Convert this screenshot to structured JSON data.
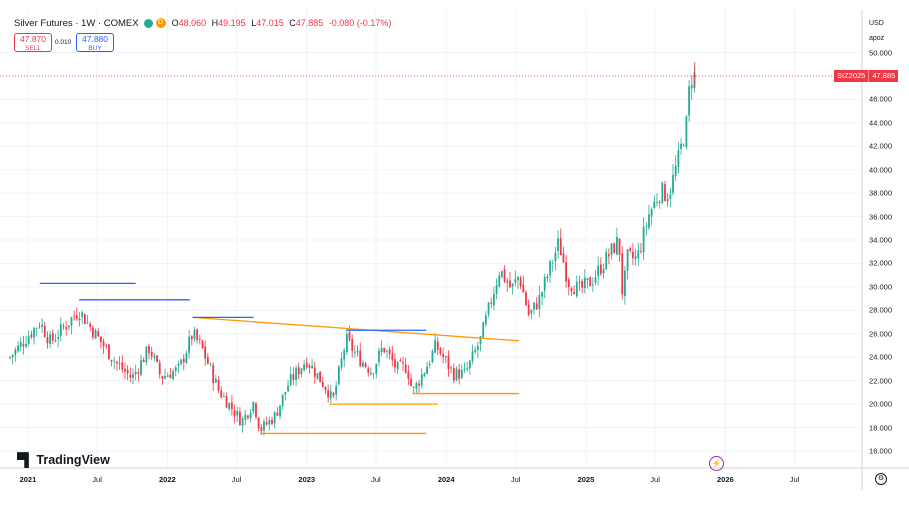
{
  "legend": {
    "title": "Silver Futures · 1W · COMEX",
    "status_code": "D",
    "open_label": "O",
    "open": "48.060",
    "high_label": "H",
    "high": "49.195",
    "low_label": "L",
    "low": "47.015",
    "close_label": "C",
    "close": "47.885",
    "change": "-0.080 (-0.17%)"
  },
  "trade": {
    "sell_price": "47.870",
    "sell_label": "SELL",
    "spread": "0.010",
    "buy_price": "47.880",
    "buy_label": "BUY"
  },
  "axis": {
    "currency": "USD",
    "approx_label": "apoz",
    "last_symbol": "SIZ2025",
    "last_price": "47.885"
  },
  "branding": {
    "logo_text": "TradingView"
  },
  "colors": {
    "up": "#22ab94",
    "down": "#f23645",
    "support": "#ff9800",
    "resistance": "#2962ff",
    "grid": "#f0f3fa"
  },
  "chart_data": {
    "type": "candlestick",
    "title": "Silver Futures · 1W · COMEX",
    "ylabel": "USD",
    "ylim": [
      14.5,
      51.3
    ],
    "y_ticks": [
      "16.000",
      "18.000",
      "20.000",
      "22.000",
      "24.000",
      "26.000",
      "28.000",
      "30.000",
      "32.000",
      "34.000",
      "36.000",
      "38.000",
      "40.000",
      "42.000",
      "44.000",
      "46.000",
      "48.000",
      "50.000"
    ],
    "x_ticks": [
      {
        "label": "2021",
        "date": "2021-01-01",
        "year": true
      },
      {
        "label": "Jul",
        "date": "2021-07-01",
        "year": false
      },
      {
        "label": "2022",
        "date": "2022-01-01",
        "year": true
      },
      {
        "label": "Jul",
        "date": "2022-07-01",
        "year": false
      },
      {
        "label": "2023",
        "date": "2023-01-01",
        "year": true
      },
      {
        "label": "Jul",
        "date": "2023-07-01",
        "year": false
      },
      {
        "label": "2024",
        "date": "2024-01-01",
        "year": true
      },
      {
        "label": "Jul",
        "date": "2024-07-01",
        "year": false
      },
      {
        "label": "2025",
        "date": "2025-01-01",
        "year": true
      },
      {
        "label": "Jul",
        "date": "2025-07-01",
        "year": false
      },
      {
        "label": "2026",
        "date": "2026-01-01",
        "year": true
      },
      {
        "label": "Jul",
        "date": "2026-07-01",
        "year": false
      }
    ],
    "close_anchors": [
      [
        "2020-11-15",
        24.0
      ],
      [
        "2021-02-01",
        27.0
      ],
      [
        "2021-03-01",
        25.3
      ],
      [
        "2021-05-15",
        28.0
      ],
      [
        "2021-06-15",
        26.5
      ],
      [
        "2021-08-20",
        23.5
      ],
      [
        "2021-09-30",
        22.2
      ],
      [
        "2021-11-15",
        24.8
      ],
      [
        "2021-12-15",
        22.3
      ],
      [
        "2022-02-01",
        23.0
      ],
      [
        "2022-03-08",
        26.0
      ],
      [
        "2022-04-01",
        24.8
      ],
      [
        "2022-05-15",
        21.2
      ],
      [
        "2022-07-15",
        18.5
      ],
      [
        "2022-08-15",
        20.2
      ],
      [
        "2022-09-01",
        17.8
      ],
      [
        "2022-10-10",
        19.0
      ],
      [
        "2022-11-15",
        21.8
      ],
      [
        "2022-12-31",
        23.8
      ],
      [
        "2023-02-25",
        21.2
      ],
      [
        "2023-03-10",
        20.2
      ],
      [
        "2023-04-14",
        25.5
      ],
      [
        "2023-05-15",
        24.0
      ],
      [
        "2023-06-20",
        22.8
      ],
      [
        "2023-07-20",
        24.9
      ],
      [
        "2023-08-25",
        23.0
      ],
      [
        "2023-09-20",
        23.2
      ],
      [
        "2023-10-05",
        21.0
      ],
      [
        "2023-11-15",
        23.5
      ],
      [
        "2023-12-05",
        25.0
      ],
      [
        "2024-01-20",
        22.6
      ],
      [
        "2024-02-20",
        22.6
      ],
      [
        "2024-03-31",
        25.5
      ],
      [
        "2024-05-20",
        31.5
      ],
      [
        "2024-06-20",
        29.8
      ],
      [
        "2024-07-10",
        31.0
      ],
      [
        "2024-08-05",
        27.5
      ],
      [
        "2024-09-01",
        29.0
      ],
      [
        "2024-10-22",
        33.8
      ],
      [
        "2024-11-15",
        30.5
      ],
      [
        "2024-12-15",
        29.7
      ],
      [
        "2025-01-15",
        30.5
      ],
      [
        "2025-03-28",
        34.0
      ],
      [
        "2025-04-07",
        29.2
      ],
      [
        "2025-04-20",
        32.5
      ],
      [
        "2025-05-15",
        32.4
      ],
      [
        "2025-06-15",
        36.2
      ],
      [
        "2025-07-15",
        38.2
      ],
      [
        "2025-08-05",
        37.8
      ],
      [
        "2025-09-01",
        41.0
      ],
      [
        "2025-09-22",
        44.0
      ],
      [
        "2025-10-01",
        47.9
      ],
      [
        "2025-10-13",
        48.0
      ]
    ],
    "last_candle": {
      "date": "2025-10-13",
      "open": 48.06,
      "high": 49.195,
      "low": 47.015,
      "close": 47.885
    },
    "support_lines": [
      {
        "x1": "2022-03-08",
        "y1": 27.4,
        "x2": "2024-07-10",
        "y2": 25.4,
        "color": "orange"
      },
      {
        "x1": "2022-09-01",
        "y1": 17.5,
        "x2": "2023-11-10",
        "y2": 17.5,
        "color": "orange"
      },
      {
        "x1": "2023-03-01",
        "y1": 20.0,
        "x2": "2023-12-10",
        "y2": 20.0,
        "color": "orange"
      },
      {
        "x1": "2023-10-05",
        "y1": 20.9,
        "x2": "2024-07-10",
        "y2": 20.9,
        "color": "orange"
      }
    ],
    "resistance_lines": [
      {
        "x1": "2021-02-01",
        "y1": 30.3,
        "x2": "2021-10-10",
        "y2": 30.3,
        "color": "blue"
      },
      {
        "x1": "2021-05-15",
        "y1": 28.9,
        "x2": "2022-03-01",
        "y2": 28.9,
        "color": "blue"
      },
      {
        "x1": "2022-03-08",
        "y1": 27.4,
        "x2": "2022-08-15",
        "y2": 27.4,
        "color": "blue"
      },
      {
        "x1": "2023-04-14",
        "y1": 26.3,
        "x2": "2023-11-10",
        "y2": 26.3,
        "color": "blue"
      }
    ]
  }
}
